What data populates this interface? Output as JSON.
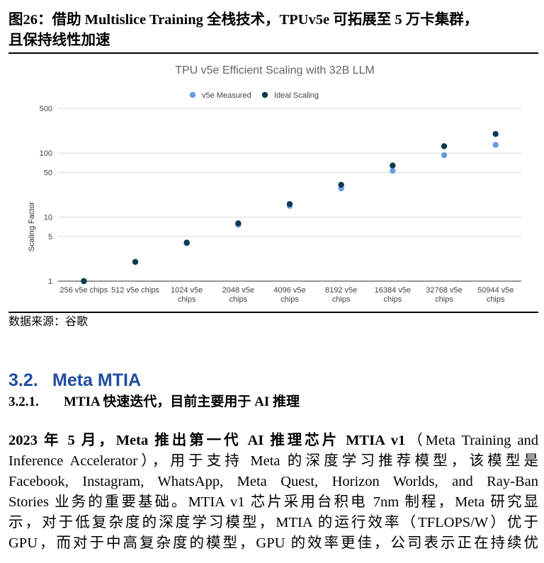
{
  "figure": {
    "title_line1": "图26：借助 Multislice Training 全栈技术，TPUv5e 可拓展至 5 万卡集群，",
    "title_line2": "且保持线性加速",
    "source": "数据来源：谷歌"
  },
  "chart_data": {
    "type": "scatter",
    "title": "TPU v5e Efficient Scaling with 32B LLM",
    "ylabel": "Scaling Factor",
    "y_scale": "log",
    "ylim": [
      1,
      500
    ],
    "y_ticks": [
      "1",
      "5",
      "10",
      "50",
      "100",
      "500"
    ],
    "grid": true,
    "legend_position": "top-center",
    "categories": [
      "256 v5e chips",
      "512 v5e chips",
      "1024 v5e chips",
      "2048 v5e chips",
      "4096 v5e chips",
      "8192 v5e chips",
      "16384 v5e chips",
      "32768 v5e chips",
      "50944 v5e chips"
    ],
    "category_lines": [
      [
        "256 v5e chips"
      ],
      [
        "512 v5e chips"
      ],
      [
        "1024 v5e",
        "chips"
      ],
      [
        "2048 v5e",
        "chips"
      ],
      [
        "4096 v5e",
        "chips"
      ],
      [
        "8192 v5e",
        "chips"
      ],
      [
        "16384 v5e",
        "chips"
      ],
      [
        "32768 v5e",
        "chips"
      ],
      [
        "50944 v5e",
        "chips"
      ]
    ],
    "series": [
      {
        "name": "v5e Measured",
        "color": "#6a9be8",
        "values": [
          1,
          2,
          3.9,
          7.6,
          15,
          28,
          53,
          93,
          134
        ]
      },
      {
        "name": "Ideal Scaling",
        "color": "#0b3a52",
        "values": [
          1,
          2,
          4,
          8,
          16,
          32,
          64,
          128,
          199
        ]
      }
    ]
  },
  "section": {
    "number": "3.2.",
    "title": "Meta MTIA",
    "sub_number": "3.2.1.",
    "sub_title": "MTIA 快速迭代，目前主要用于 AI 推理"
  },
  "paragraph": {
    "line1_bold": "2023 年 5 月，Meta 推出第一代 AI 推理芯片 MTIA v1",
    "line1_rest": "（Meta Training and",
    "line2": "Inference Accelerator），用于支持 Meta 的深度学习推荐模型，该模型是",
    "line3": "Facebook, Instagram, WhatsApp, Meta Quest, Horizon Worlds, and Ray-Ban",
    "line4": "Stories 业务的重要基础。MTIA v1 芯片采用台积电 7nm 制程，Meta 研究显",
    "line5": "示，对于低复杂度的深度学习模型，MTIA 的运行效率（TFLOPS/W）优于",
    "line6": "GPU，而对于中高复杂度的模型，GPU 的效率更佳，公司表示正在持续优"
  }
}
